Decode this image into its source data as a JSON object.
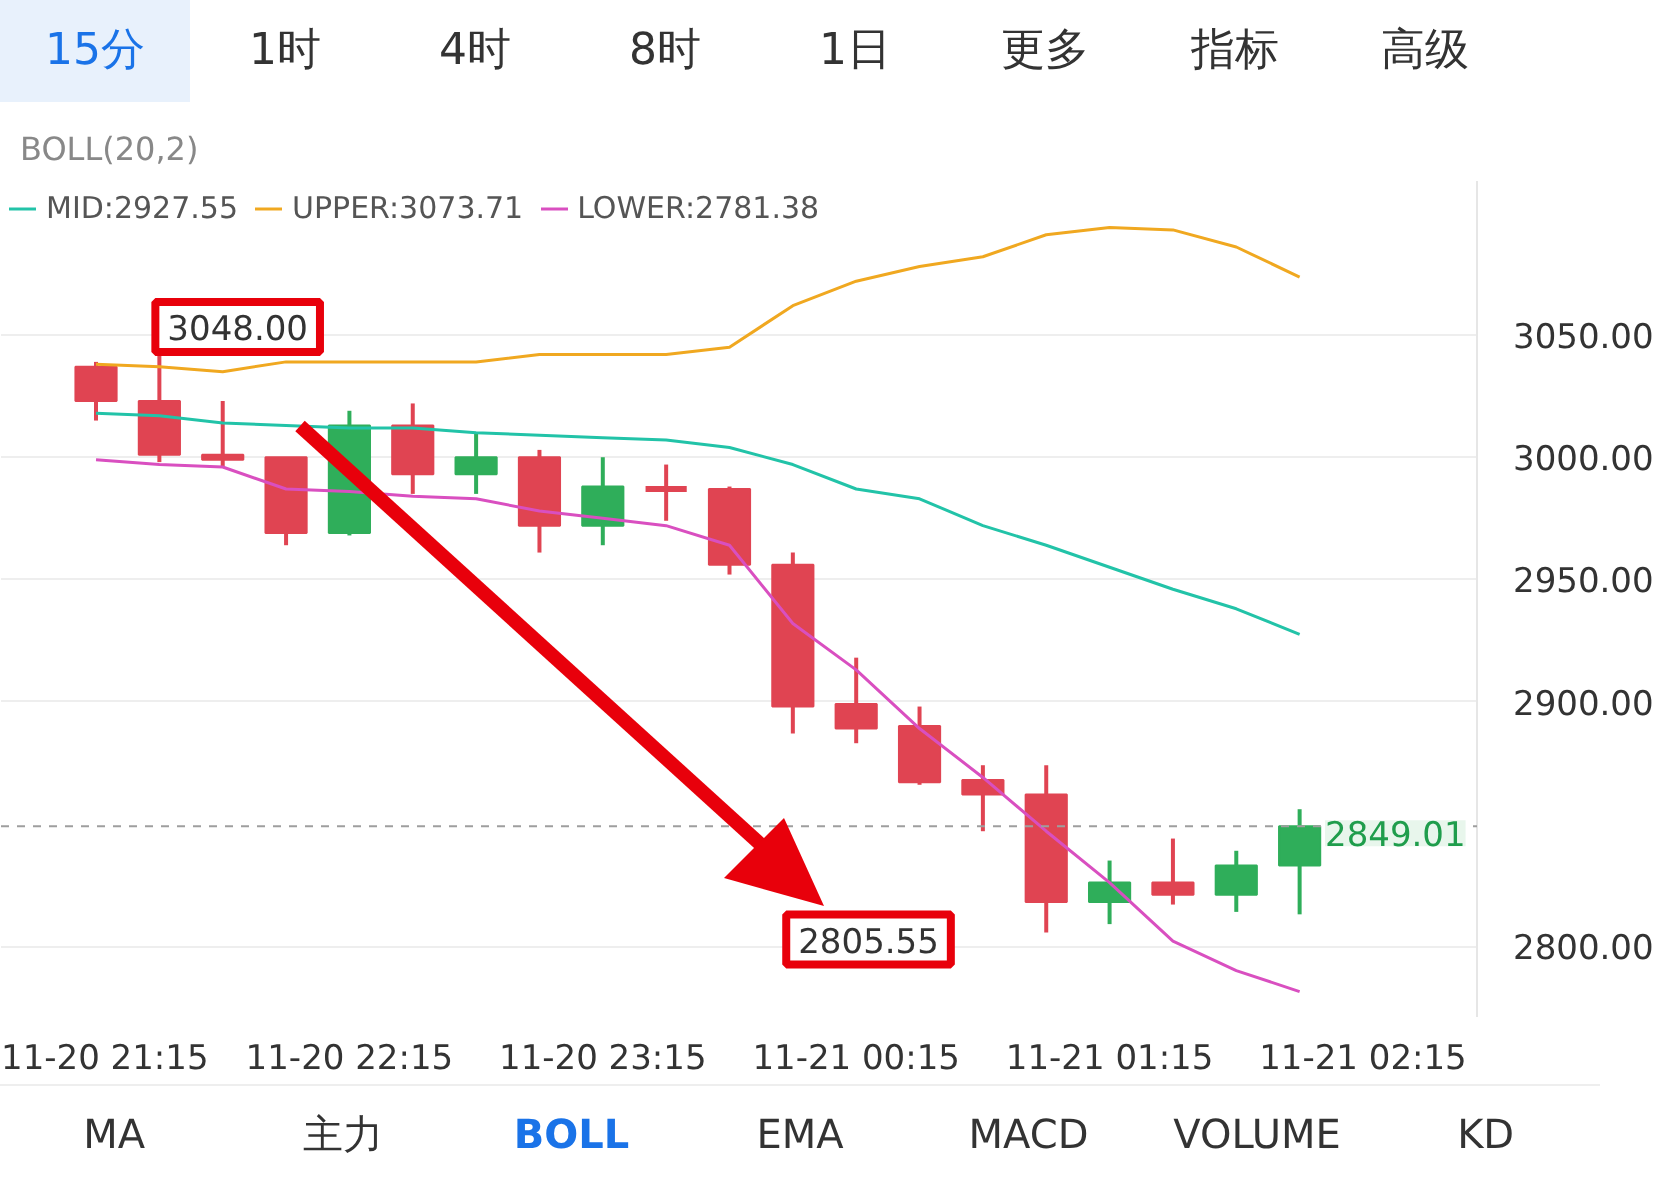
{
  "chart_data": {
    "type": "candlestick",
    "title": "BOLL(20,2)",
    "categories": [
      "11-20 21:15",
      null,
      null,
      null,
      "11-20 22:15",
      null,
      null,
      null,
      "11-20 23:15",
      null,
      null,
      null,
      "11-21 00:15",
      null,
      null,
      null,
      "11-21 01:15",
      null,
      null,
      null,
      "11-21 02:15"
    ],
    "ohlc": [
      [
        3037,
        3039,
        3015,
        3023
      ],
      [
        3023,
        3048,
        2998,
        3001
      ],
      [
        3001,
        3023,
        2996,
        2999
      ],
      [
        3000,
        3000,
        2964,
        2969
      ],
      [
        2969,
        3019,
        2968,
        3013
      ],
      [
        3013,
        3022,
        2985,
        2993
      ],
      [
        2993,
        3010,
        2985,
        3000
      ],
      [
        3000,
        3003,
        2961,
        2972
      ],
      [
        2972,
        3000,
        2964,
        2988
      ],
      [
        2987,
        2997,
        2974,
        2987
      ],
      [
        2987,
        2988,
        2952,
        2956
      ],
      [
        2956,
        2961,
        2887,
        2898
      ],
      [
        2899,
        2918,
        2883,
        2889
      ],
      [
        2890,
        2898,
        2866,
        2867
      ],
      [
        2868,
        2874,
        2847,
        2862
      ],
      [
        2862,
        2874,
        2805.55,
        2818
      ],
      [
        2818,
        2835,
        2809,
        2826
      ],
      [
        2826,
        2844,
        2817,
        2821
      ],
      [
        2821,
        2839,
        2814,
        2833
      ],
      [
        2833,
        2856,
        2813,
        2849.01
      ],
      null
    ],
    "colors": [
      "#e04452",
      "#e04452",
      "#e04452",
      "#e04452",
      "#2fae5a",
      "#e04452",
      "#2fae5a",
      "#e04452",
      "#2fae5a",
      "#e04452",
      "#e04452",
      "#e04452",
      "#e04452",
      "#e04452",
      "#e04452",
      "#e04452",
      "#2fae5a",
      "#e04452",
      "#2fae5a",
      "#2fae5a",
      null
    ],
    "series": [
      {
        "name": "MID:2927.55",
        "type": "line",
        "color": "#22c3a8",
        "values": [
          3018,
          3017,
          3014,
          3013,
          3012,
          3012,
          3010,
          3009,
          3008,
          3007,
          3004,
          2997,
          2987,
          2983,
          2972,
          2964,
          2955,
          2946,
          2938,
          2927.55,
          null
        ]
      },
      {
        "name": "UPPER:3073.71",
        "type": "line",
        "color": "#f0a820",
        "values": [
          3038,
          3037,
          3035,
          3039,
          3039,
          3039,
          3039,
          3042,
          3042,
          3042,
          3045,
          3062,
          3072,
          3078,
          3082,
          3091,
          3094,
          3093,
          3086,
          3073.71,
          null
        ]
      },
      {
        "name": "LOWER:2781.38",
        "type": "line",
        "color": "#d94fc0",
        "values": [
          2999,
          2997,
          2996,
          2987,
          2986,
          2984,
          2983,
          2978,
          2975,
          2972,
          2964,
          2932,
          2913,
          2889,
          2869,
          2847,
          2826,
          2802,
          2790,
          2781.38,
          null
        ]
      }
    ],
    "ylim": [
      2771,
      3113
    ],
    "yticks": [
      {
        "value": 2800,
        "label": "2800.00"
      },
      {
        "value": 2900,
        "label": "2900.00"
      },
      {
        "value": 2950,
        "label": "2950.00"
      },
      {
        "value": 3000,
        "label": "3000.00"
      },
      {
        "value": 3050,
        "label": "3050.00"
      }
    ],
    "ref_lines": [
      {
        "axis": "y",
        "value": 2849.01,
        "label": "2849.01",
        "color": "#9e9e9e",
        "line_style": "dashed"
      }
    ],
    "annotations": [
      "15分",
      "1时",
      "4时",
      "8时",
      "1日",
      "更多",
      "指标",
      "高级",
      "MA",
      "主力",
      "BOLL",
      "EMA",
      "MACD",
      "VOLUME",
      "KD",
      "3048.00",
      "2805.55"
    ],
    "grid": "y",
    "legend": "top left"
  }
}
